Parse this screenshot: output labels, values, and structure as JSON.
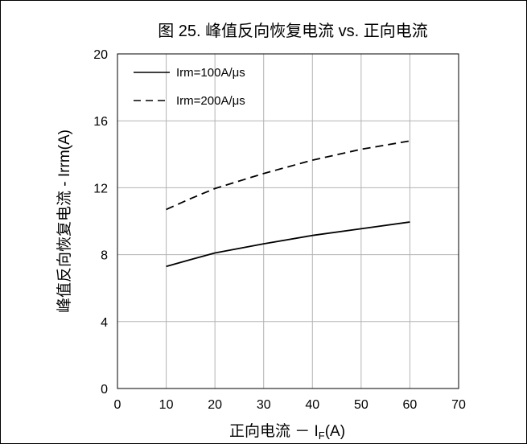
{
  "chart_data": {
    "type": "line",
    "title": "图 25. 峰值反向恢复电流 vs. 正向电流",
    "xlabel_main": "正向电流 － I",
    "xlabel_sub": "F",
    "xlabel_tail": "(A)",
    "ylabel": "峰值反向恢复电流 - Irrm(A)",
    "xlim": [
      0,
      70
    ],
    "ylim": [
      0,
      20
    ],
    "x_ticks": [
      "0",
      "10",
      "20",
      "30",
      "40",
      "50",
      "60",
      "70"
    ],
    "y_ticks": [
      "0",
      "4",
      "8",
      "12",
      "16",
      "20"
    ],
    "grid": true,
    "legend_position": "top-left",
    "series": [
      {
        "name": "Irm=100A/μs",
        "style": "solid",
        "color": "#000000",
        "x": [
          10,
          15,
          20,
          30,
          40,
          50,
          60
        ],
        "y": [
          7.3,
          7.7,
          8.1,
          8.65,
          9.15,
          9.55,
          9.95
        ]
      },
      {
        "name": "Irm=200A/μs",
        "style": "dashed",
        "color": "#000000",
        "x": [
          10,
          15,
          20,
          30,
          40,
          50,
          60
        ],
        "y": [
          10.7,
          11.35,
          11.95,
          12.85,
          13.65,
          14.3,
          14.8
        ]
      }
    ]
  }
}
